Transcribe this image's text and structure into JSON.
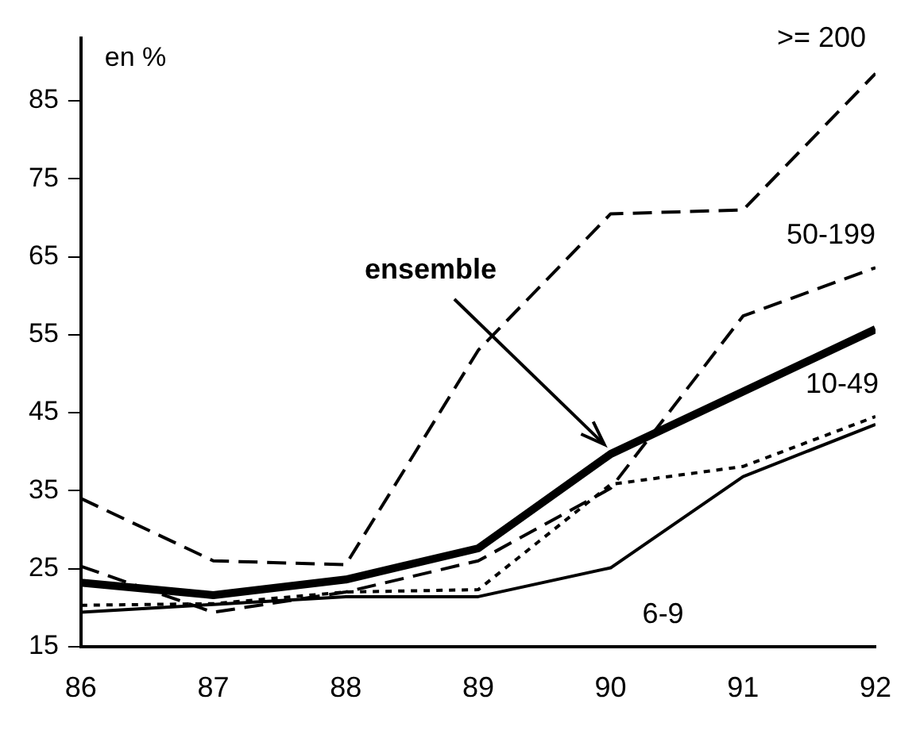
{
  "chart_data": {
    "type": "line",
    "ylabel": "en %",
    "x": [
      86,
      87,
      88,
      89,
      90,
      91,
      92
    ],
    "xlim": [
      86,
      92
    ],
    "xticks": [
      86,
      87,
      88,
      89,
      90,
      91,
      92
    ],
    "ylim": [
      15,
      93
    ],
    "yticks": [
      15,
      25,
      35,
      45,
      55,
      65,
      75,
      85
    ],
    "grid": false,
    "legend": false,
    "marker": "none",
    "series": [
      {
        "name": ">= 200",
        "color": "#000000",
        "line_style": "dashed",
        "values": [
          34,
          26,
          25.5,
          53,
          70.5,
          71,
          88.5
        ]
      },
      {
        "name": "50-199",
        "color": "#000000",
        "line_style": "dashed",
        "values": [
          25.3,
          19.4,
          22,
          26,
          35.3,
          57.4,
          63.6
        ]
      },
      {
        "name": "ensemble",
        "color": "#000000",
        "line_style": "solid",
        "values": [
          23.2,
          21.6,
          23.6,
          27.6,
          39.7,
          47.7,
          55.7
        ]
      },
      {
        "name": "10-49",
        "color": "#000000",
        "line_style": "dotted",
        "values": [
          20.3,
          20.5,
          22,
          22.3,
          35.8,
          38.1,
          44.5
        ]
      },
      {
        "name": "6-9",
        "color": "#000000",
        "line_style": "solid",
        "values": [
          19.4,
          20.4,
          21.4,
          21.4,
          25.1,
          36.8,
          43.5
        ]
      }
    ]
  }
}
